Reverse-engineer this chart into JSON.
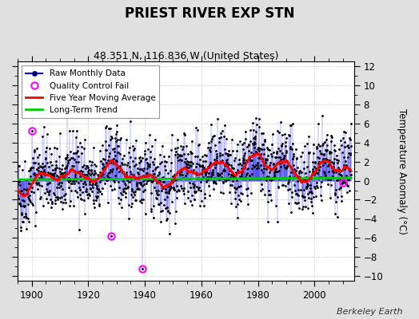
{
  "title": "PRIEST RIVER EXP STN",
  "subtitle": "48.351 N, 116.836 W (United States)",
  "ylabel": "Temperature Anomaly (°C)",
  "credit": "Berkeley Earth",
  "year_start": 1895,
  "year_end": 2013,
  "ylim": [
    -10.5,
    12.5
  ],
  "yticks": [
    -10,
    -8,
    -6,
    -4,
    -2,
    0,
    2,
    4,
    6,
    8,
    10,
    12
  ],
  "xticks": [
    1900,
    1920,
    1940,
    1960,
    1980,
    2000
  ],
  "raw_color": "#0000EE",
  "dot_color": "#000000",
  "ma_color": "#FF0000",
  "trend_color": "#00CC00",
  "qc_color": "#FF00FF",
  "bg_color": "#E0E0E0",
  "plot_bg_color": "#FFFFFF",
  "seed": 42,
  "n_months": 1416,
  "qc_fail_indices": [
    60,
    396,
    528,
    1380
  ],
  "qc_fail_values": [
    5.2,
    -5.8,
    -9.2,
    -0.2
  ],
  "trend_intercept": 0.15,
  "trend_slope": 0.001,
  "legend_loc": "upper left"
}
